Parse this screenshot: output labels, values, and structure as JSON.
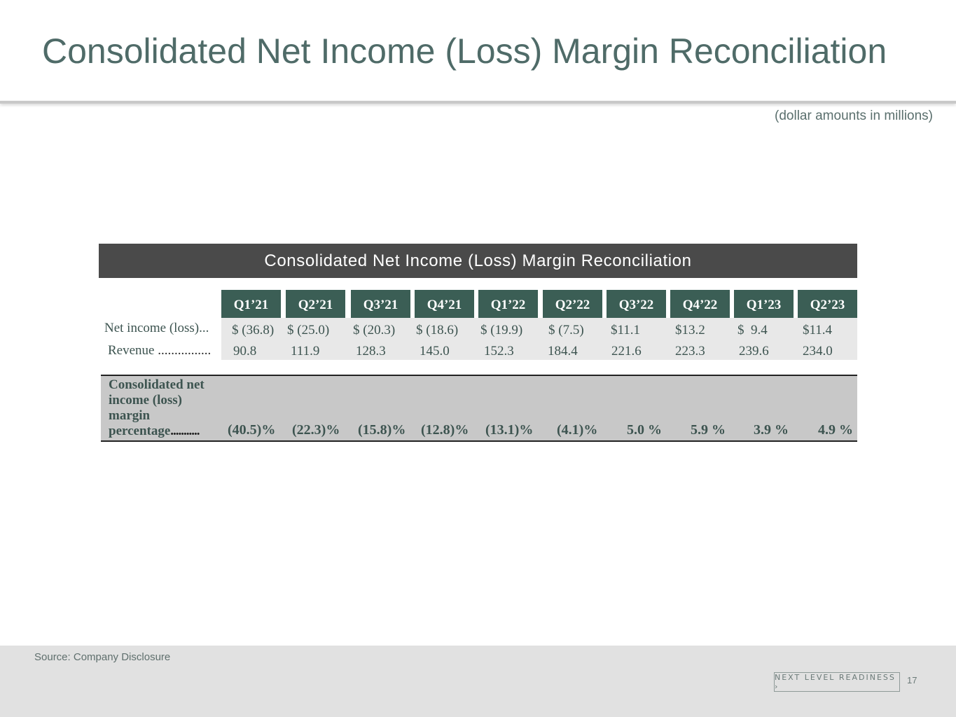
{
  "page": {
    "title": "Consolidated Net Income (Loss) Margin Reconciliation",
    "units_note": "(dollar amounts in millions)",
    "source": "Source: Company Disclosure",
    "brand": "NEXT LEVEL READINESS ›",
    "page_number": "17"
  },
  "table": {
    "banner": "Consolidated Net Income (Loss) Margin Reconciliation",
    "quarters": [
      "Q1’21",
      "Q2’21",
      "Q3’21",
      "Q4’21",
      "Q1’22",
      "Q2’22",
      "Q3’22",
      "Q4’22",
      "Q1’23",
      "Q2’23"
    ],
    "net_income_label": "Net income (loss)...",
    "net_income": [
      "$ (36.8)",
      "$ (25.0)",
      "$ (20.3)",
      "$ (18.6)",
      "$ (19.9)",
      "$ (7.5)",
      "$11.1",
      "$13.2",
      "$  9.4",
      "$11.4"
    ],
    "revenue_label": "Revenue",
    "revenue_dots": "................",
    "revenue": [
      "90.8",
      "111.9",
      "128.3",
      "145.0",
      "152.3",
      "184.4",
      "221.6",
      "223.3",
      "239.6",
      "234.0"
    ],
    "margin_label": "Consolidated net income (loss) margin percentage",
    "margin_dots": "...........",
    "margin": [
      "(40.5)%",
      "(22.3)%",
      "(15.8)%",
      "(12.8)%",
      "(13.1)%",
      "(4.1)%",
      "5.0 %",
      "5.9 %",
      "3.9 %",
      "4.9 %"
    ]
  },
  "colors": {
    "title": "#4f6b68",
    "banner_bg": "#4a4a4a",
    "header_bg": "#3b5e55",
    "row_band": "#e8e8e8",
    "margin_band": "#c8c8c8",
    "footer_bg": "#e1e1e1"
  }
}
